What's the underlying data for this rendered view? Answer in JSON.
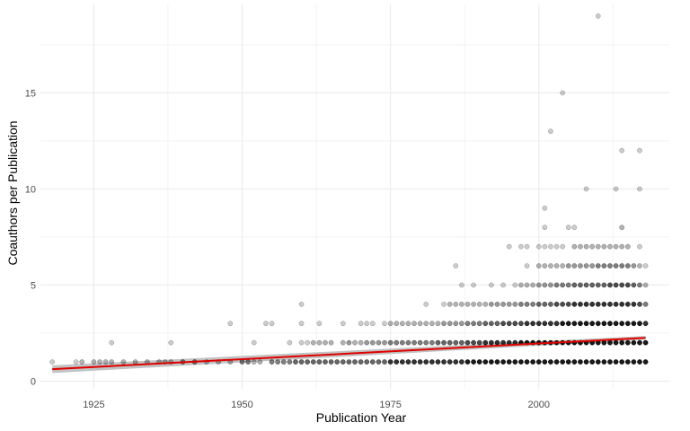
{
  "chart_data": {
    "type": "scatter",
    "xlabel": "Publication Year",
    "ylabel": "Coauthors per Publication",
    "xlim": [
      1916,
      2022
    ],
    "ylim": [
      -0.4,
      19.6
    ],
    "x_ticks": [
      1925,
      1950,
      1975,
      2000
    ],
    "x_tick_labels": [
      "1925",
      "1950",
      "1975",
      "2000"
    ],
    "y_ticks": [
      0,
      5,
      10,
      15
    ],
    "y_tick_labels": [
      "0",
      "5",
      "10",
      "15"
    ],
    "grid": true,
    "point_color": "#000000",
    "trend_color": "#e00000",
    "band_color": "#b3b3b3",
    "background": "#ffffff",
    "gridline_color": "#ebebeb",
    "points": [
      [
        1918,
        1,
        0.2
      ],
      [
        1922,
        1,
        0.2
      ],
      [
        1923,
        1,
        0.3
      ],
      [
        1925,
        1,
        0.3
      ],
      [
        1926,
        1,
        0.3
      ],
      [
        1927,
        1,
        0.3
      ],
      [
        1928,
        2,
        0.2
      ],
      [
        1928,
        1,
        0.3
      ],
      [
        1930,
        1,
        0.3
      ],
      [
        1932,
        1,
        0.3
      ],
      [
        1934,
        1,
        0.3
      ],
      [
        1936,
        1,
        0.3
      ],
      [
        1937,
        1,
        0.3
      ],
      [
        1938,
        2,
        0.2
      ],
      [
        1938,
        1,
        0.3
      ],
      [
        1940,
        1,
        0.5
      ],
      [
        1942,
        1,
        0.5
      ],
      [
        1944,
        1,
        0.3
      ],
      [
        1946,
        1,
        0.3
      ],
      [
        1948,
        3,
        0.2
      ],
      [
        1948,
        1,
        0.3
      ],
      [
        1950,
        1,
        0.5
      ],
      [
        1951,
        1,
        0.5
      ],
      [
        1952,
        2,
        0.2
      ],
      [
        1952,
        1,
        0.3
      ],
      [
        1953,
        1,
        0.3
      ],
      [
        1954,
        3,
        0.2
      ],
      [
        1955,
        3,
        0.2
      ],
      [
        1955,
        1,
        0.5
      ],
      [
        1956,
        1,
        0.5
      ],
      [
        1957,
        1,
        0.5
      ],
      [
        1958,
        2,
        0.2
      ],
      [
        1958,
        1,
        0.5
      ],
      [
        1959,
        1,
        0.6
      ],
      [
        1960,
        4,
        0.2
      ],
      [
        1960,
        3,
        0.2
      ],
      [
        1960,
        2,
        0.2
      ],
      [
        1960,
        1,
        0.6
      ],
      [
        1961,
        2,
        0.2
      ],
      [
        1961,
        1,
        0.6
      ],
      [
        1962,
        2,
        0.3
      ],
      [
        1962,
        1,
        0.6
      ],
      [
        1963,
        3,
        0.2
      ],
      [
        1963,
        2,
        0.3
      ],
      [
        1963,
        1,
        0.6
      ],
      [
        1964,
        2,
        0.3
      ],
      [
        1964,
        1,
        0.6
      ],
      [
        1965,
        2,
        0.3
      ],
      [
        1965,
        1,
        0.6
      ],
      [
        1966,
        1,
        0.6
      ],
      [
        1967,
        3,
        0.2
      ],
      [
        1967,
        2,
        0.3
      ],
      [
        1967,
        1,
        0.6
      ],
      [
        1968,
        2,
        0.4
      ],
      [
        1968,
        1,
        0.6
      ],
      [
        1969,
        2,
        0.3
      ],
      [
        1969,
        1,
        0.6
      ],
      [
        1970,
        3,
        0.2
      ],
      [
        1970,
        2,
        0.3
      ],
      [
        1970,
        1,
        0.6
      ],
      [
        1971,
        3,
        0.2
      ],
      [
        1971,
        2,
        0.4
      ],
      [
        1971,
        1,
        0.6
      ],
      [
        1972,
        3,
        0.2
      ],
      [
        1972,
        2,
        0.4
      ],
      [
        1972,
        1,
        0.6
      ],
      [
        1973,
        2,
        0.4
      ],
      [
        1973,
        1,
        0.6
      ],
      [
        1974,
        3,
        0.2
      ],
      [
        1974,
        2,
        0.4
      ],
      [
        1974,
        1,
        0.6
      ],
      [
        1975,
        3,
        0.3
      ],
      [
        1975,
        2,
        0.5
      ],
      [
        1975,
        1,
        0.8
      ],
      [
        1976,
        3,
        0.3
      ],
      [
        1976,
        2,
        0.5
      ],
      [
        1976,
        1,
        0.8
      ],
      [
        1977,
        3,
        0.3
      ],
      [
        1977,
        2,
        0.5
      ],
      [
        1977,
        1,
        0.8
      ],
      [
        1978,
        3,
        0.3
      ],
      [
        1978,
        2,
        0.5
      ],
      [
        1978,
        1,
        0.8
      ],
      [
        1979,
        3,
        0.3
      ],
      [
        1979,
        2,
        0.5
      ],
      [
        1979,
        1,
        0.8
      ],
      [
        1980,
        3,
        0.3
      ],
      [
        1980,
        2,
        0.5
      ],
      [
        1980,
        1,
        0.8
      ],
      [
        1981,
        4,
        0.2
      ],
      [
        1981,
        3,
        0.3
      ],
      [
        1981,
        2,
        0.5
      ],
      [
        1981,
        1,
        0.8
      ],
      [
        1982,
        3,
        0.3
      ],
      [
        1982,
        2,
        0.5
      ],
      [
        1982,
        1,
        0.8
      ],
      [
        1983,
        3,
        0.3
      ],
      [
        1983,
        2,
        0.6
      ],
      [
        1983,
        1,
        0.8
      ],
      [
        1984,
        4,
        0.2
      ],
      [
        1984,
        3,
        0.4
      ],
      [
        1984,
        2,
        0.6
      ],
      [
        1984,
        1,
        0.8
      ],
      [
        1985,
        4,
        0.3
      ],
      [
        1985,
        3,
        0.4
      ],
      [
        1985,
        2,
        0.6
      ],
      [
        1985,
        1,
        0.8
      ],
      [
        1986,
        6,
        0.2
      ],
      [
        1986,
        4,
        0.3
      ],
      [
        1986,
        3,
        0.4
      ],
      [
        1986,
        2,
        0.6
      ],
      [
        1986,
        1,
        0.8
      ],
      [
        1987,
        5,
        0.2
      ],
      [
        1987,
        4,
        0.3
      ],
      [
        1987,
        3,
        0.4
      ],
      [
        1987,
        2,
        0.6
      ],
      [
        1987,
        1,
        0.8
      ],
      [
        1988,
        4,
        0.3
      ],
      [
        1988,
        3,
        0.5
      ],
      [
        1988,
        2,
        0.7
      ],
      [
        1988,
        1,
        0.9
      ],
      [
        1989,
        5,
        0.2
      ],
      [
        1989,
        4,
        0.3
      ],
      [
        1989,
        3,
        0.5
      ],
      [
        1989,
        2,
        0.7
      ],
      [
        1989,
        1,
        0.9
      ],
      [
        1990,
        4,
        0.3
      ],
      [
        1990,
        3,
        0.5
      ],
      [
        1990,
        2,
        0.7
      ],
      [
        1990,
        1,
        0.9
      ],
      [
        1991,
        4,
        0.3
      ],
      [
        1991,
        3,
        0.6
      ],
      [
        1991,
        2,
        0.8
      ],
      [
        1991,
        1,
        0.9
      ],
      [
        1992,
        5,
        0.2
      ],
      [
        1992,
        4,
        0.4
      ],
      [
        1992,
        3,
        0.6
      ],
      [
        1992,
        2,
        0.8
      ],
      [
        1992,
        1,
        0.9
      ],
      [
        1993,
        4,
        0.4
      ],
      [
        1993,
        3,
        0.6
      ],
      [
        1993,
        2,
        0.8
      ],
      [
        1993,
        1,
        0.9
      ],
      [
        1994,
        5,
        0.2
      ],
      [
        1994,
        4,
        0.4
      ],
      [
        1994,
        3,
        0.7
      ],
      [
        1994,
        2,
        0.8
      ],
      [
        1994,
        1,
        0.9
      ],
      [
        1995,
        7,
        0.2
      ],
      [
        1995,
        4,
        0.4
      ],
      [
        1995,
        3,
        0.7
      ],
      [
        1995,
        2,
        0.8
      ],
      [
        1995,
        1,
        0.9
      ],
      [
        1996,
        5,
        0.2
      ],
      [
        1996,
        4,
        0.4
      ],
      [
        1996,
        3,
        0.7
      ],
      [
        1996,
        2,
        0.8
      ],
      [
        1996,
        1,
        0.9
      ],
      [
        1997,
        7,
        0.2
      ],
      [
        1997,
        5,
        0.3
      ],
      [
        1997,
        4,
        0.5
      ],
      [
        1997,
        3,
        0.7
      ],
      [
        1997,
        2,
        0.9
      ],
      [
        1997,
        1,
        0.9
      ],
      [
        1998,
        7,
        0.2
      ],
      [
        1998,
        6,
        0.2
      ],
      [
        1998,
        5,
        0.3
      ],
      [
        1998,
        4,
        0.5
      ],
      [
        1998,
        3,
        0.8
      ],
      [
        1998,
        2,
        0.9
      ],
      [
        1998,
        1,
        0.9
      ],
      [
        1999,
        5,
        0.3
      ],
      [
        1999,
        4,
        0.5
      ],
      [
        1999,
        3,
        0.8
      ],
      [
        1999,
        2,
        0.9
      ],
      [
        1999,
        1,
        0.9
      ],
      [
        2000,
        7,
        0.2
      ],
      [
        2000,
        6,
        0.3
      ],
      [
        2000,
        5,
        0.4
      ],
      [
        2000,
        4,
        0.6
      ],
      [
        2000,
        3,
        0.8
      ],
      [
        2000,
        2,
        0.9
      ],
      [
        2000,
        1,
        0.9
      ],
      [
        2001,
        9,
        0.2
      ],
      [
        2001,
        8,
        0.2
      ],
      [
        2001,
        7,
        0.2
      ],
      [
        2001,
        6,
        0.3
      ],
      [
        2001,
        5,
        0.4
      ],
      [
        2001,
        4,
        0.6
      ],
      [
        2001,
        3,
        0.8
      ],
      [
        2001,
        2,
        0.9
      ],
      [
        2001,
        1,
        0.9
      ],
      [
        2002,
        13,
        0.2
      ],
      [
        2002,
        7,
        0.2
      ],
      [
        2002,
        6,
        0.3
      ],
      [
        2002,
        5,
        0.4
      ],
      [
        2002,
        4,
        0.6
      ],
      [
        2002,
        3,
        0.8
      ],
      [
        2002,
        2,
        0.9
      ],
      [
        2002,
        1,
        0.9
      ],
      [
        2003,
        7,
        0.2
      ],
      [
        2003,
        6,
        0.3
      ],
      [
        2003,
        5,
        0.5
      ],
      [
        2003,
        4,
        0.7
      ],
      [
        2003,
        3,
        0.8
      ],
      [
        2003,
        2,
        0.9
      ],
      [
        2003,
        1,
        0.9
      ],
      [
        2004,
        15,
        0.2
      ],
      [
        2004,
        7,
        0.2
      ],
      [
        2004,
        6,
        0.3
      ],
      [
        2004,
        5,
        0.5
      ],
      [
        2004,
        4,
        0.7
      ],
      [
        2004,
        3,
        0.9
      ],
      [
        2004,
        2,
        0.9
      ],
      [
        2004,
        1,
        0.9
      ],
      [
        2005,
        8,
        0.2
      ],
      [
        2005,
        6,
        0.4
      ],
      [
        2005,
        5,
        0.5
      ],
      [
        2005,
        4,
        0.7
      ],
      [
        2005,
        3,
        0.9
      ],
      [
        2005,
        2,
        0.9
      ],
      [
        2005,
        1,
        0.9
      ],
      [
        2006,
        8,
        0.2
      ],
      [
        2006,
        7,
        0.3
      ],
      [
        2006,
        6,
        0.4
      ],
      [
        2006,
        5,
        0.6
      ],
      [
        2006,
        4,
        0.8
      ],
      [
        2006,
        3,
        0.9
      ],
      [
        2006,
        2,
        0.9
      ],
      [
        2006,
        1,
        0.9
      ],
      [
        2007,
        7,
        0.3
      ],
      [
        2007,
        6,
        0.4
      ],
      [
        2007,
        5,
        0.6
      ],
      [
        2007,
        4,
        0.8
      ],
      [
        2007,
        3,
        0.9
      ],
      [
        2007,
        2,
        0.9
      ],
      [
        2007,
        1,
        0.9
      ],
      [
        2008,
        10,
        0.2
      ],
      [
        2008,
        7,
        0.3
      ],
      [
        2008,
        6,
        0.4
      ],
      [
        2008,
        5,
        0.6
      ],
      [
        2008,
        4,
        0.8
      ],
      [
        2008,
        3,
        0.9
      ],
      [
        2008,
        2,
        0.9
      ],
      [
        2008,
        1,
        0.9
      ],
      [
        2009,
        7,
        0.3
      ],
      [
        2009,
        6,
        0.4
      ],
      [
        2009,
        5,
        0.6
      ],
      [
        2009,
        4,
        0.8
      ],
      [
        2009,
        3,
        0.9
      ],
      [
        2009,
        2,
        0.9
      ],
      [
        2009,
        1,
        0.9
      ],
      [
        2010,
        19,
        0.2
      ],
      [
        2010,
        7,
        0.3
      ],
      [
        2010,
        6,
        0.5
      ],
      [
        2010,
        5,
        0.6
      ],
      [
        2010,
        4,
        0.8
      ],
      [
        2010,
        3,
        0.9
      ],
      [
        2010,
        2,
        0.9
      ],
      [
        2010,
        1,
        0.9
      ],
      [
        2011,
        7,
        0.3
      ],
      [
        2011,
        6,
        0.5
      ],
      [
        2011,
        5,
        0.6
      ],
      [
        2011,
        4,
        0.8
      ],
      [
        2011,
        3,
        0.9
      ],
      [
        2011,
        2,
        0.9
      ],
      [
        2011,
        1,
        0.9
      ],
      [
        2012,
        7,
        0.3
      ],
      [
        2012,
        6,
        0.5
      ],
      [
        2012,
        5,
        0.7
      ],
      [
        2012,
        4,
        0.8
      ],
      [
        2012,
        3,
        0.9
      ],
      [
        2012,
        2,
        0.9
      ],
      [
        2012,
        1,
        0.9
      ],
      [
        2013,
        10,
        0.2
      ],
      [
        2013,
        7,
        0.3
      ],
      [
        2013,
        6,
        0.5
      ],
      [
        2013,
        5,
        0.7
      ],
      [
        2013,
        4,
        0.8
      ],
      [
        2013,
        3,
        0.9
      ],
      [
        2013,
        2,
        0.9
      ],
      [
        2013,
        1,
        0.9
      ],
      [
        2014,
        12,
        0.2
      ],
      [
        2014,
        8,
        0.3
      ],
      [
        2014,
        7,
        0.3
      ],
      [
        2014,
        6,
        0.5
      ],
      [
        2014,
        5,
        0.7
      ],
      [
        2014,
        4,
        0.8
      ],
      [
        2014,
        3,
        0.9
      ],
      [
        2014,
        2,
        0.9
      ],
      [
        2014,
        1,
        0.9
      ],
      [
        2015,
        7,
        0.3
      ],
      [
        2015,
        6,
        0.5
      ],
      [
        2015,
        5,
        0.7
      ],
      [
        2015,
        4,
        0.8
      ],
      [
        2015,
        3,
        0.9
      ],
      [
        2015,
        2,
        0.9
      ],
      [
        2015,
        1,
        0.9
      ],
      [
        2016,
        6,
        0.4
      ],
      [
        2016,
        5,
        0.6
      ],
      [
        2016,
        4,
        0.8
      ],
      [
        2016,
        3,
        0.9
      ],
      [
        2016,
        2,
        0.9
      ],
      [
        2016,
        1,
        0.9
      ],
      [
        2017,
        12,
        0.2
      ],
      [
        2017,
        10,
        0.2
      ],
      [
        2017,
        7,
        0.2
      ],
      [
        2017,
        6,
        0.3
      ],
      [
        2017,
        5,
        0.5
      ],
      [
        2017,
        4,
        0.7
      ],
      [
        2017,
        3,
        0.9
      ],
      [
        2017,
        2,
        0.9
      ],
      [
        2017,
        1,
        0.9
      ],
      [
        2018,
        6,
        0.2
      ],
      [
        2018,
        5,
        0.3
      ],
      [
        2018,
        4,
        0.5
      ],
      [
        2018,
        3,
        0.8
      ],
      [
        2018,
        2,
        0.9
      ],
      [
        2018,
        1,
        0.9
      ]
    ],
    "trend": {
      "x": [
        1918,
        2018
      ],
      "y": [
        0.62,
        2.25
      ],
      "band_lower": [
        0.42,
        2.15
      ],
      "band_upper": [
        0.82,
        2.35
      ]
    }
  }
}
